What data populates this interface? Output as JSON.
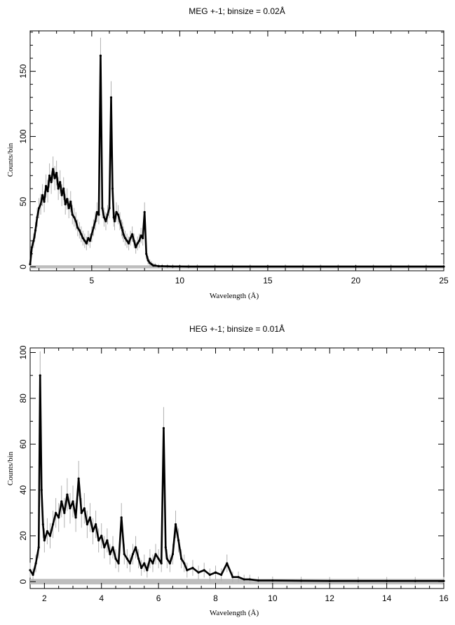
{
  "chart_data": [
    {
      "type": "line",
      "title": "MEG +-1; binsize = 0.02Å",
      "xlabel": "Wavelength (Å)",
      "ylabel": "Counts/bin",
      "xlim": [
        1.5,
        25
      ],
      "ylim": [
        -3,
        181
      ],
      "xticks": [
        5,
        10,
        15,
        20,
        25
      ],
      "yticks": [
        0,
        50,
        100,
        150
      ],
      "grid": false,
      "series": [
        {
          "x": [
            1.5,
            1.6,
            1.7,
            1.8,
            1.9,
            2.0,
            2.1,
            2.2,
            2.3,
            2.4,
            2.5,
            2.6,
            2.7,
            2.8,
            2.9,
            3.0,
            3.1,
            3.2,
            3.3,
            3.4,
            3.5,
            3.6,
            3.7,
            3.8,
            3.9,
            4.0,
            4.1,
            4.2,
            4.3,
            4.4,
            4.5,
            4.6,
            4.7,
            4.8,
            4.9,
            5.0,
            5.1,
            5.2,
            5.3,
            5.4,
            5.5,
            5.6,
            5.7,
            5.8,
            5.9,
            6.0,
            6.1,
            6.18,
            6.25,
            6.3,
            6.4,
            6.5,
            6.6,
            6.7,
            6.75,
            6.8,
            6.9,
            7.0,
            7.1,
            7.2,
            7.3,
            7.4,
            7.5,
            7.6,
            7.7,
            7.8,
            7.9,
            8.0,
            8.1,
            8.2,
            8.3,
            8.4,
            8.5,
            8.6,
            8.8,
            9.0,
            9.3,
            9.6,
            10.0,
            10.5,
            11.0,
            12.0,
            13.0,
            14.0,
            15.0,
            16.0,
            17.0,
            18.0,
            19.0,
            20.0,
            21.0,
            22.0,
            23.0,
            24.0,
            25.0
          ],
          "values": [
            2,
            15,
            20,
            28,
            38,
            45,
            48,
            55,
            50,
            62,
            58,
            70,
            65,
            75,
            68,
            72,
            60,
            65,
            55,
            60,
            48,
            52,
            45,
            50,
            40,
            38,
            35,
            30,
            28,
            25,
            22,
            20,
            18,
            22,
            20,
            25,
            30,
            35,
            42,
            40,
            162,
            45,
            38,
            35,
            40,
            45,
            130,
            60,
            38,
            35,
            42,
            40,
            35,
            30,
            28,
            25,
            22,
            20,
            18,
            22,
            25,
            20,
            15,
            18,
            20,
            24,
            22,
            42,
            10,
            5,
            3,
            2,
            1,
            1,
            0.5,
            0.5,
            0.4,
            0.3,
            0.3,
            0.2,
            0.2,
            0.2,
            0.2,
            0.2,
            0.2,
            0.2,
            0.2,
            0.2,
            0.2,
            0.2,
            0.2,
            0.2,
            0.2,
            0.2,
            0.2
          ]
        }
      ]
    },
    {
      "type": "line",
      "title": "HEG +-1; binsize = 0.01Å",
      "xlabel": "Wavelength (Å)",
      "ylabel": "Counts/bin",
      "xlim": [
        1.5,
        16
      ],
      "ylim": [
        -3,
        102
      ],
      "xticks": [
        2,
        4,
        6,
        8,
        10,
        12,
        14,
        16
      ],
      "yticks": [
        0,
        20,
        40,
        60,
        80,
        100
      ],
      "grid": false,
      "series": [
        {
          "x": [
            1.5,
            1.6,
            1.7,
            1.8,
            1.85,
            1.9,
            1.95,
            2.0,
            2.1,
            2.2,
            2.3,
            2.4,
            2.5,
            2.6,
            2.7,
            2.8,
            2.9,
            3.0,
            3.1,
            3.2,
            3.3,
            3.4,
            3.5,
            3.6,
            3.7,
            3.8,
            3.9,
            4.0,
            4.1,
            4.2,
            4.3,
            4.4,
            4.5,
            4.6,
            4.7,
            4.8,
            4.9,
            5.0,
            5.1,
            5.2,
            5.3,
            5.4,
            5.5,
            5.6,
            5.7,
            5.8,
            5.9,
            6.0,
            6.1,
            6.18,
            6.25,
            6.3,
            6.4,
            6.5,
            6.6,
            6.7,
            6.8,
            6.9,
            7.0,
            7.2,
            7.4,
            7.6,
            7.8,
            8.0,
            8.2,
            8.4,
            8.6,
            8.8,
            9.0,
            9.2,
            9.5,
            10.0,
            11.0,
            12.0,
            13.0,
            14.0,
            15.0,
            16.0
          ],
          "values": [
            5,
            3,
            8,
            15,
            90,
            40,
            25,
            18,
            22,
            20,
            25,
            30,
            28,
            35,
            30,
            38,
            32,
            35,
            28,
            45,
            30,
            32,
            25,
            28,
            22,
            25,
            18,
            20,
            15,
            18,
            12,
            15,
            10,
            8,
            28,
            12,
            10,
            8,
            12,
            15,
            10,
            6,
            8,
            5,
            10,
            8,
            12,
            10,
            8,
            67,
            15,
            10,
            8,
            12,
            25,
            18,
            10,
            8,
            5,
            6,
            4,
            5,
            3,
            4,
            3,
            8,
            2,
            2,
            1,
            1,
            0.5,
            0.5,
            0.4,
            0.3,
            0.3,
            0.3,
            0.3,
            0.3
          ]
        }
      ]
    }
  ]
}
